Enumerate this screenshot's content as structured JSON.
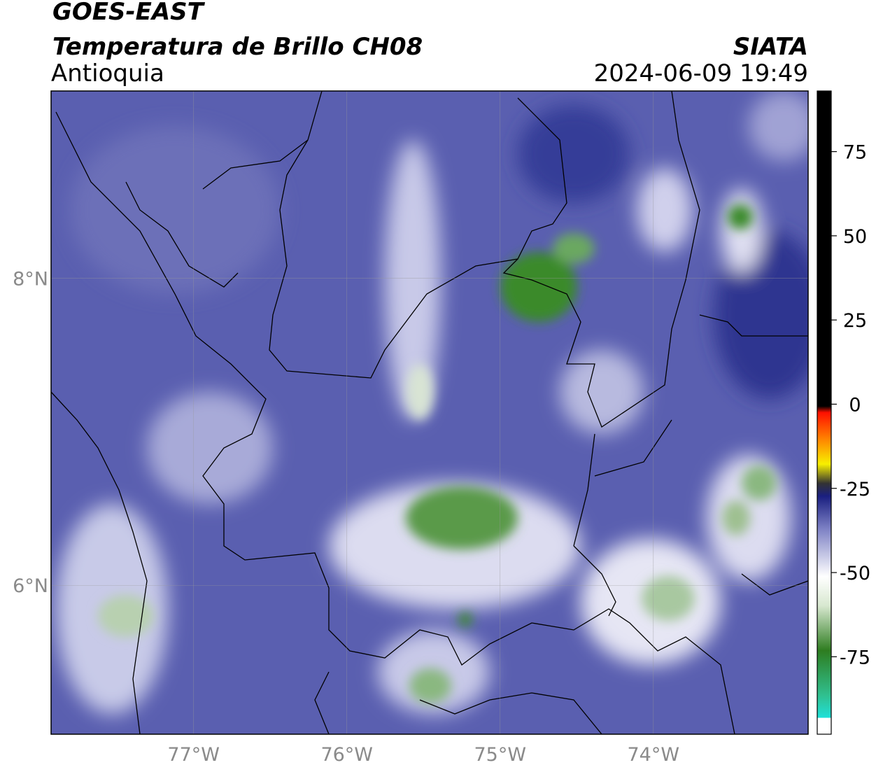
{
  "header": {
    "satellite": "GOES-EAST",
    "product": "Temperatura de Brillo CH08",
    "region": "Antioquia",
    "source": "SIATA",
    "datetime": "2024-06-09 19:49"
  },
  "map": {
    "xlim": [
      -77.93,
      -72.99
    ],
    "ylim": [
      5.03,
      9.22
    ],
    "xticks": [
      {
        "value": -77,
        "label": "77°W"
      },
      {
        "value": -76,
        "label": "76°W"
      },
      {
        "value": -75,
        "label": "75°W"
      },
      {
        "value": -74,
        "label": "74°W"
      }
    ],
    "yticks": [
      {
        "value": 8,
        "label": "8°N"
      },
      {
        "value": 6,
        "label": "6°N"
      }
    ],
    "grid": true
  },
  "colorbar": {
    "clim": [
      -98,
      93
    ],
    "ticks": [
      75,
      50,
      25,
      0,
      -25,
      -50,
      -75
    ]
  }
}
